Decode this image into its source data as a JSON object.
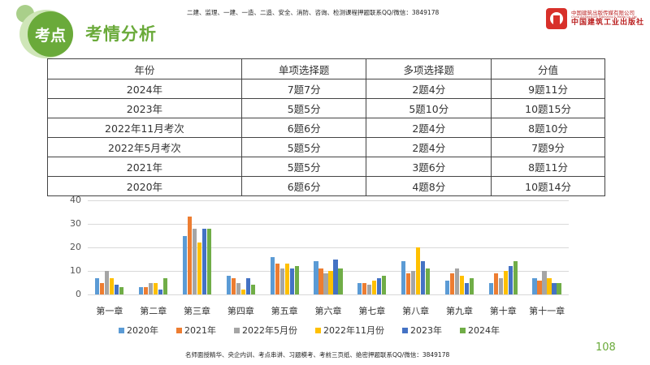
{
  "header": {
    "badge": "考点",
    "title": "考情分析",
    "top_note": "二建、监理、一建、一造、二造、安全、消防、咨询、检测课程押题联系QQ/微信：3849178",
    "logo": {
      "company_cn": "中国建筑出版传媒有限公司",
      "company_en": "China Architecture Publishing & Media Co.,Ltd",
      "publisher": "中国建筑工业出版社"
    }
  },
  "table": {
    "headers": [
      "年份",
      "单项选择题",
      "多项选择题",
      "分值"
    ],
    "rows": [
      [
        "2024年",
        "7题7分",
        "2题4分",
        "9题11分"
      ],
      [
        "2023年",
        "5题5分",
        "5题10分",
        "10题15分"
      ],
      [
        "2022年11月考次",
        "6题6分",
        "2题4分",
        "8题10分"
      ],
      [
        "2022年5月考次",
        "5题5分",
        "2题4分",
        "7题9分"
      ],
      [
        "2021年",
        "5题5分",
        "3题6分",
        "8题11分"
      ],
      [
        "2020年",
        "6题6分",
        "4题8分",
        "10题14分"
      ]
    ]
  },
  "chart_data": {
    "type": "bar",
    "title": "",
    "xlabel": "",
    "ylabel": "",
    "ylim": [
      0,
      40
    ],
    "yticks": [
      0,
      10,
      20,
      30,
      40
    ],
    "grid": true,
    "legend_position": "bottom",
    "categories": [
      "第一章",
      "第二章",
      "第三章",
      "第四章",
      "第五章",
      "第六章",
      "第七章",
      "第八章",
      "第九章",
      "第十章",
      "第十一章"
    ],
    "series": [
      {
        "name": "2020年",
        "color": "#5b9bd5",
        "values": [
          7,
          3,
          25,
          8,
          16,
          14,
          5,
          14,
          6,
          5,
          7
        ]
      },
      {
        "name": "2021年",
        "color": "#ed7d31",
        "values": [
          5,
          3,
          33,
          7,
          13,
          11,
          5,
          9,
          9,
          9,
          6
        ]
      },
      {
        "name": "2022年5月份",
        "color": "#a5a5a5",
        "values": [
          10,
          5,
          28,
          5,
          11,
          9,
          4,
          10,
          11,
          7,
          10
        ]
      },
      {
        "name": "2022年11月份",
        "color": "#ffc000",
        "values": [
          7,
          5,
          22,
          2,
          13,
          10,
          6,
          20,
          8,
          10,
          7
        ]
      },
      {
        "name": "2023年",
        "color": "#4472c4",
        "values": [
          4,
          2,
          28,
          7,
          11,
          15,
          7,
          14,
          5,
          12,
          5
        ]
      },
      {
        "name": "2024年",
        "color": "#70ad47",
        "values": [
          3,
          7,
          28,
          4,
          12,
          11,
          8,
          11,
          7,
          14,
          5
        ]
      }
    ]
  },
  "footer": {
    "note": "名师面授精华、央企内训、考点串讲、习题模考、考前三页纸、绝密押题联系QQ/微信：3849178",
    "page_number": "108"
  }
}
